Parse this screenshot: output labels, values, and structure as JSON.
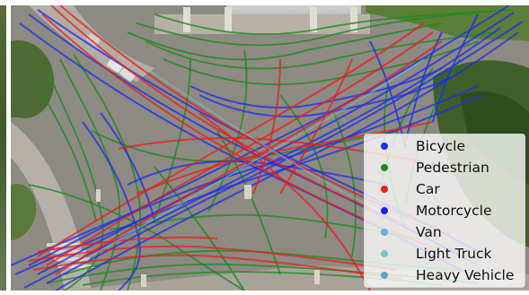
{
  "legend": {
    "items": [
      {
        "label": "Bicycle",
        "color": "#1f2ee8"
      },
      {
        "label": "Pedestrian",
        "color": "#1e8a1e"
      },
      {
        "label": "Car",
        "color": "#e81f1f"
      },
      {
        "label": "Motorcycle",
        "color": "#1f1fe0"
      },
      {
        "label": "Van",
        "color": "#5fb2d6"
      },
      {
        "label": "Light Truck",
        "color": "#77c4c8"
      },
      {
        "label": "Heavy Vehicle",
        "color": "#5aa9c9"
      }
    ]
  }
}
